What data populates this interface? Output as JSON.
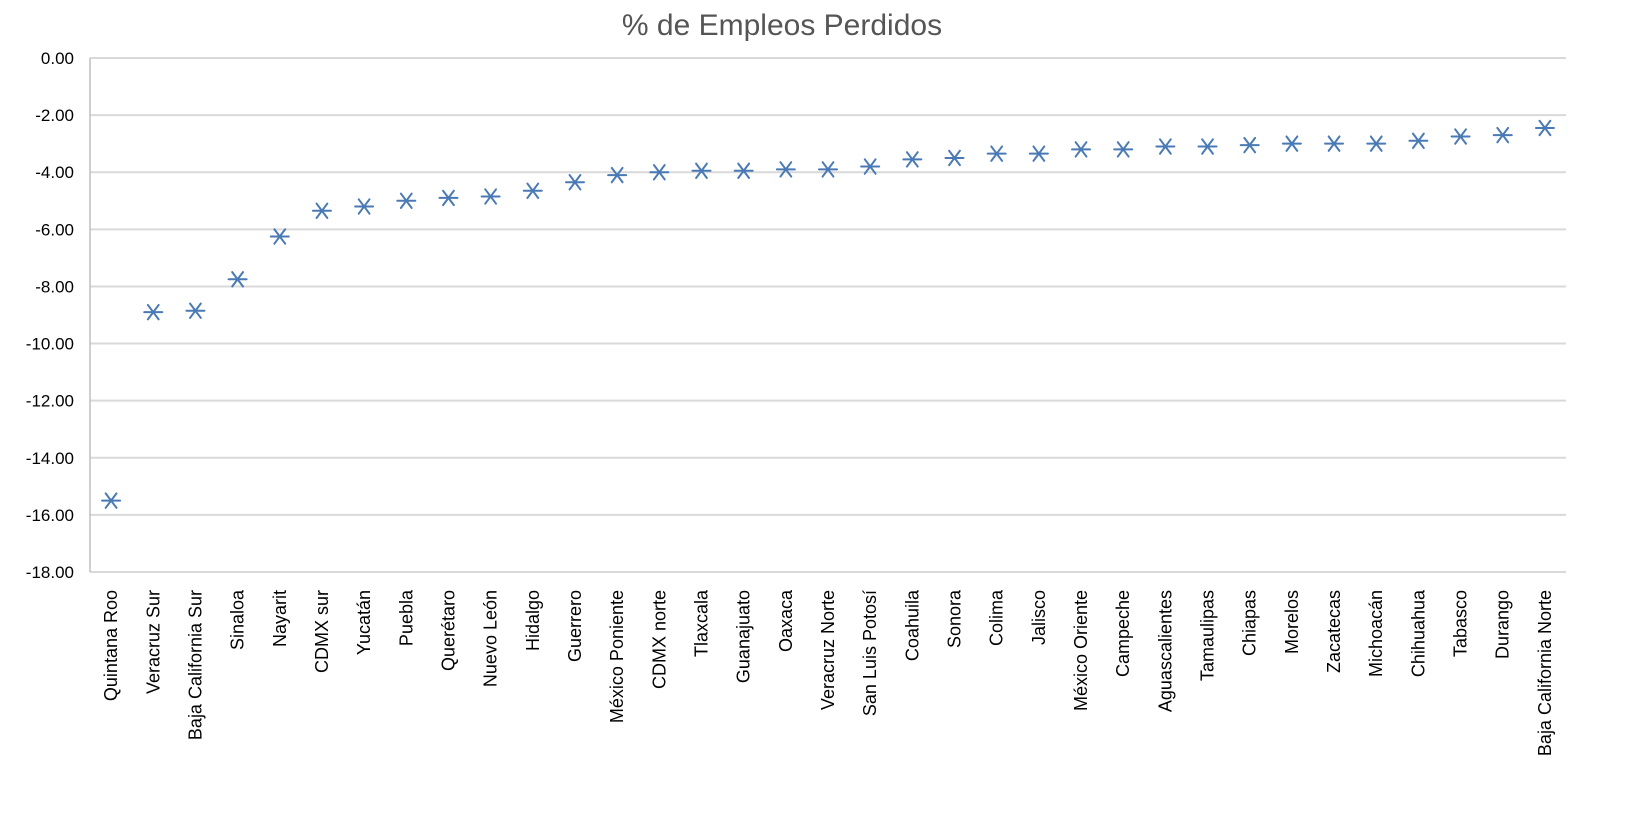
{
  "chart_data": {
    "type": "scatter",
    "title": "% de Empleos Perdidos",
    "xlabel": "",
    "ylabel": "",
    "ylim": [
      -18,
      0
    ],
    "ytick_step": 2,
    "ytick_labels": [
      "0.00",
      "-2.00",
      "-4.00",
      "-6.00",
      "-8.00",
      "-10.00",
      "-12.00",
      "-14.00",
      "-16.00",
      "-18.00"
    ],
    "grid": true,
    "marker": "asterisk",
    "marker_color": "#4a7ab5",
    "categories": [
      "Quintana Roo",
      "Veracruz Sur",
      "Baja California Sur",
      "Sinaloa",
      "Nayarit",
      "CDMX sur",
      "Yucatán",
      "Puebla",
      "Querétaro",
      "Nuevo León",
      "Hidalgo",
      "Guerrero",
      "México Poniente",
      "CDMX norte",
      "Tlaxcala",
      "Guanajuato",
      "Oaxaca",
      "Veracruz Norte",
      "San Luis Potosí",
      "Coahuila",
      "Sonora",
      "Colima",
      "Jalisco",
      "México Oriente",
      "Campeche",
      "Aguascalientes",
      "Tamaulipas",
      "Chiapas",
      "Morelos",
      "Zacatecas",
      "Michoacán",
      "Chihuahua",
      "Tabasco",
      "Durango",
      "Baja California Norte"
    ],
    "values": [
      -15.5,
      -8.9,
      -8.85,
      -7.75,
      -6.25,
      -5.35,
      -5.2,
      -5.0,
      -4.9,
      -4.85,
      -4.65,
      -4.35,
      -4.1,
      -4.0,
      -3.95,
      -3.95,
      -3.9,
      -3.9,
      -3.8,
      -3.55,
      -3.5,
      -3.35,
      -3.35,
      -3.2,
      -3.2,
      -3.1,
      -3.1,
      -3.05,
      -3.0,
      -3.0,
      -3.0,
      -2.9,
      -2.75,
      -2.7,
      -2.45
    ]
  }
}
